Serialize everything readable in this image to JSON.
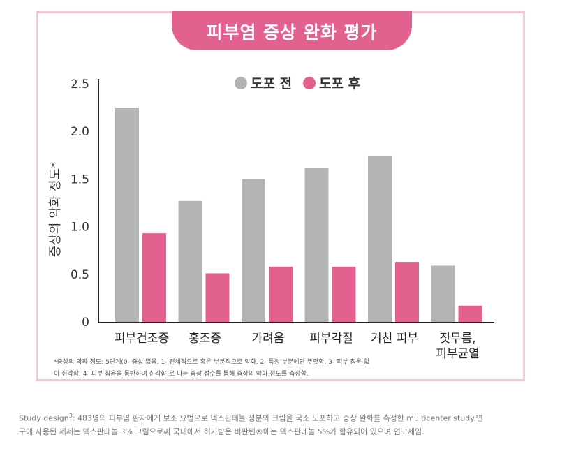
{
  "chart_data": {
    "type": "bar",
    "title": "피부염 증상 완화 평가",
    "ylabel": "증상의 악화 정도*",
    "ylim": [
      0,
      2.5
    ],
    "yticks": [
      "0",
      "0.5",
      "1.0",
      "1.5",
      "2.0",
      "2.5"
    ],
    "categories": [
      [
        "피부건조증"
      ],
      [
        "홍조증"
      ],
      [
        "가려움"
      ],
      [
        "피부각질"
      ],
      [
        "거친 피부"
      ],
      [
        "짓무름,",
        "피부균열"
      ]
    ],
    "series": [
      {
        "name": "도포 전",
        "color": "#b3b3b3",
        "values": [
          2.25,
          1.27,
          1.5,
          1.62,
          1.74,
          0.59
        ]
      },
      {
        "name": "도포 후",
        "color": "#e2618f",
        "values": [
          0.93,
          0.51,
          0.58,
          0.58,
          0.63,
          0.17
        ]
      }
    ],
    "legend_position": "top-center",
    "footnote": [
      "*증상의 악화 정도: 5단계(0- 증상 없음, 1- 전체적으로 혹은 부분적으로 악화, 2- 특정 부분에만 뚜렷함, 3- 피부 침윤 없",
      "이 심각함, 4- 피부 침윤을 동반하여 심각함)로 나눈 증상 점수를 통해 증상의 악화 정도를 측정함."
    ]
  },
  "study": {
    "prefix": "Study design",
    "sup": "3",
    "line1_rest": ": 483명의 피부염 환자에게 보조 요법으로 덱스판테놀 성분의 크림을 국소 도포하고 증상 완화를 측정한 multicenter study.연",
    "line2": "구에 사용된 제제는 덱스판테놀 3% 크림으로써 국내에서 허가받은 비판텐®에는 덱스판테놀 5%가 함유되어 있으며 연고제임."
  }
}
